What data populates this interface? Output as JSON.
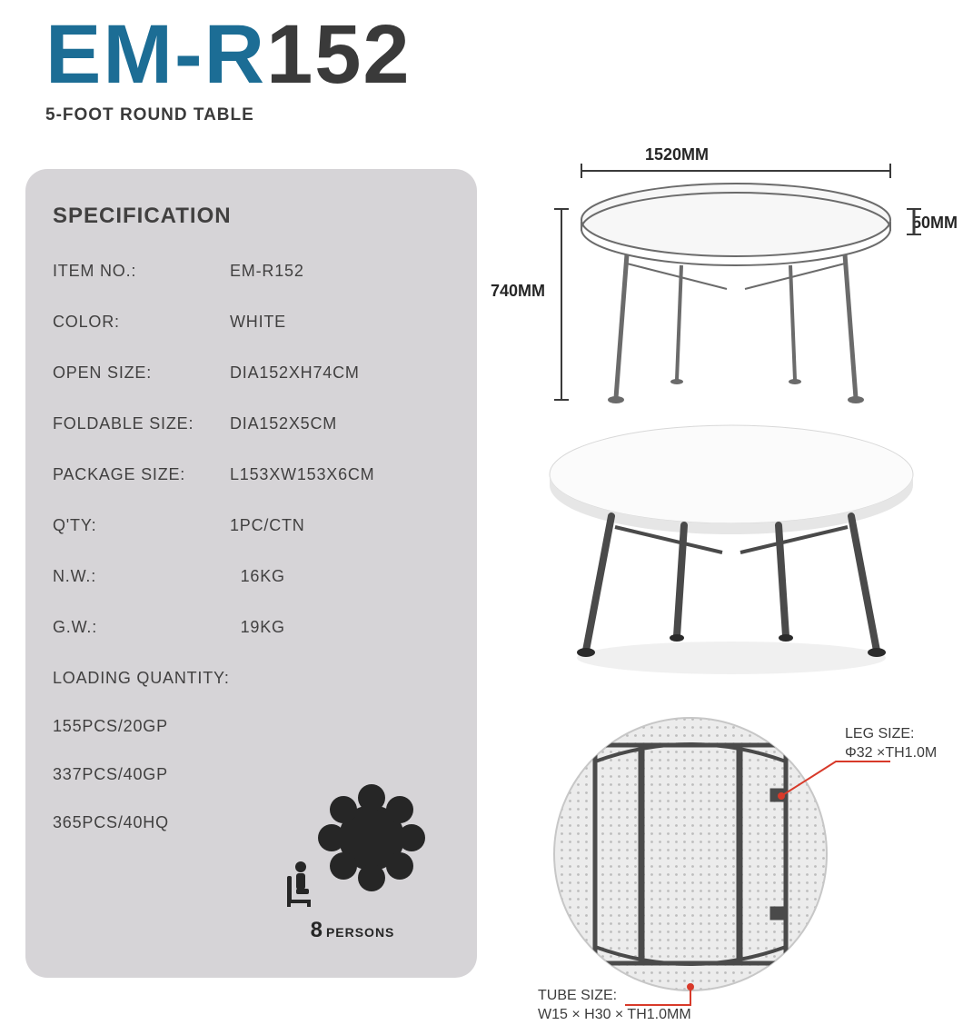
{
  "title": {
    "prefix": "EM-R",
    "suffix": "152",
    "prefix_color": "#1c6d95",
    "suffix_color": "#3a3a3a",
    "subtitle": "5-FOOT ROUND TABLE",
    "subtitle_color": "#3a3a3a"
  },
  "spec": {
    "heading": "SPECIFICATION",
    "rows": [
      {
        "label": "ITEM NO.:",
        "value": "EM-R152"
      },
      {
        "label": "COLOR:",
        "value": "WHITE"
      },
      {
        "label": "OPEN SIZE:",
        "value": "DIA152XH74CM"
      },
      {
        "label": "FOLDABLE SIZE:",
        "value": "DIA152X5CM"
      },
      {
        "label": "PACKAGE SIZE:",
        "value": "L153XW153X6CM"
      },
      {
        "label": "Q'TY:",
        "value": "1PC/CTN"
      },
      {
        "label": "N.W.:",
        "value": "  16KG"
      },
      {
        "label": "G.W.:",
        "value": "  19KG"
      }
    ],
    "loading_heading": "LOADING QUANTITY:",
    "loading": [
      "155PCS/20GP",
      "337PCS/40GP",
      "365PCS/40HQ"
    ],
    "panel_bg": "#d6d4d7",
    "text_color": "#414040"
  },
  "persons": {
    "number": "8",
    "label": "PERSONS",
    "icon_color": "#262626"
  },
  "dimensions": {
    "width_top": "1520MM",
    "height_left": "740MM",
    "thickness_right": "50MM"
  },
  "callouts": {
    "leg_size_title": "LEG SIZE:",
    "leg_size_value": "Φ32 ×TH1.0M",
    "tube_size_title": "TUBE SIZE:",
    "tube_size_value": "W15 × H30 × TH1.0MM",
    "callout_color": "#d83a2a"
  },
  "diagram": {
    "line_color": "#3a3a3a",
    "table_top_fill": "#f0f0f0",
    "table_top_stroke": "#6b6b6b",
    "photo_table_fill": "#f2f2f2",
    "photo_leg_fill": "#595959",
    "underside_bg": "#e7e7e7",
    "underside_frame": "#4a4a4a"
  }
}
